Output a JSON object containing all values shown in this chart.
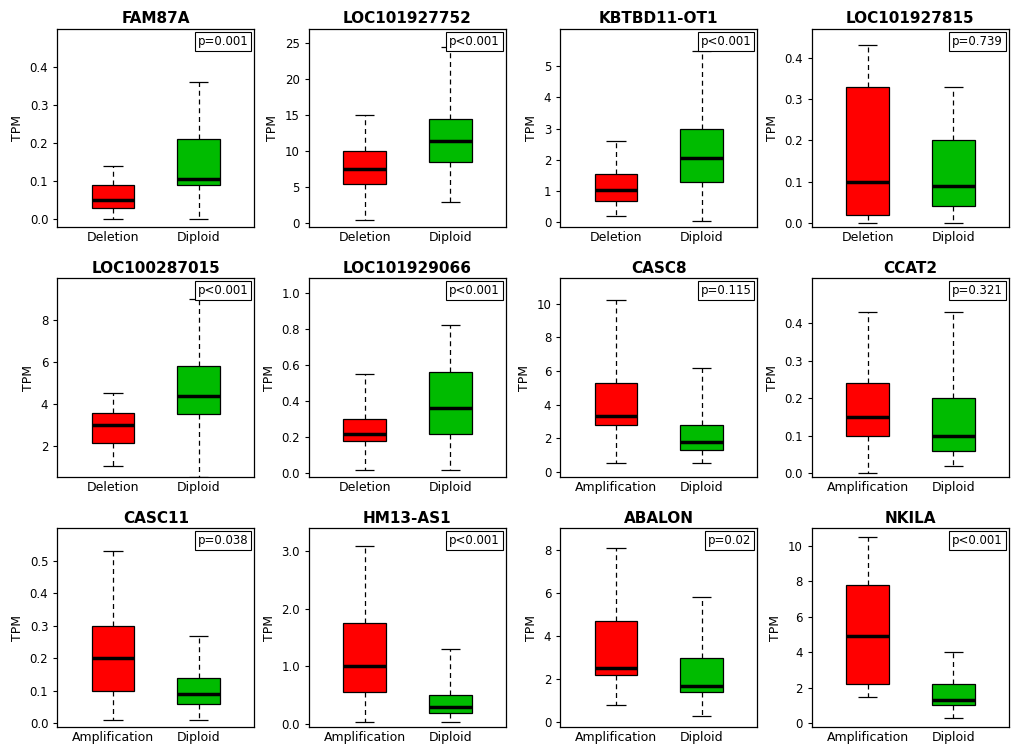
{
  "panels": [
    {
      "title": "FAM87A",
      "pvalue": "p=0.001",
      "xlabel1": "Deletion",
      "xlabel2": "Diploid",
      "color1": "#FF0000",
      "color2": "#00BB00",
      "ylim": [
        -0.02,
        0.5
      ],
      "yticks": [
        0.0,
        0.1,
        0.2,
        0.3,
        0.4
      ],
      "ytick_labels": [
        "0.0",
        "0.1",
        "0.2",
        "0.3",
        "0.4"
      ],
      "box1": {
        "whislo": 0.0,
        "q1": 0.03,
        "med": 0.05,
        "q3": 0.09,
        "whishi": 0.14
      },
      "box2": {
        "whislo": 0.0,
        "q1": 0.09,
        "med": 0.105,
        "q3": 0.21,
        "whishi": 0.36
      }
    },
    {
      "title": "LOC101927752",
      "pvalue": "p<0.001",
      "xlabel1": "Deletion",
      "xlabel2": "Diploid",
      "color1": "#FF0000",
      "color2": "#00BB00",
      "ylim": [
        -0.5,
        27
      ],
      "yticks": [
        0,
        5,
        10,
        15,
        20,
        25
      ],
      "ytick_labels": [
        "0",
        "5",
        "10",
        "15",
        "20",
        "25"
      ],
      "box1": {
        "whislo": 0.5,
        "q1": 5.5,
        "med": 7.5,
        "q3": 10.0,
        "whishi": 15.0
      },
      "box2": {
        "whislo": 3.0,
        "q1": 8.5,
        "med": 11.5,
        "q3": 14.5,
        "whishi": 24.5
      }
    },
    {
      "title": "KBTBD11-OT1",
      "pvalue": "p<0.001",
      "xlabel1": "Deletion",
      "xlabel2": "Diploid",
      "color1": "#FF0000",
      "color2": "#00BB00",
      "ylim": [
        -0.15,
        6.2
      ],
      "yticks": [
        0,
        1,
        2,
        3,
        4,
        5
      ],
      "ytick_labels": [
        "0",
        "1",
        "2",
        "3",
        "4",
        "5"
      ],
      "box1": {
        "whislo": 0.2,
        "q1": 0.7,
        "med": 1.05,
        "q3": 1.55,
        "whishi": 2.6
      },
      "box2": {
        "whislo": 0.05,
        "q1": 1.3,
        "med": 2.05,
        "q3": 3.0,
        "whishi": 5.5
      }
    },
    {
      "title": "LOC101927815",
      "pvalue": "p=0.739",
      "xlabel1": "Deletion",
      "xlabel2": "Diploid",
      "color1": "#FF0000",
      "color2": "#00BB00",
      "ylim": [
        -0.01,
        0.47
      ],
      "yticks": [
        0.0,
        0.1,
        0.2,
        0.3,
        0.4
      ],
      "ytick_labels": [
        "0.0",
        "0.1",
        "0.2",
        "0.3",
        "0.4"
      ],
      "box1": {
        "whislo": 0.0,
        "q1": 0.02,
        "med": 0.1,
        "q3": 0.33,
        "whishi": 0.43
      },
      "box2": {
        "whislo": 0.0,
        "q1": 0.04,
        "med": 0.09,
        "q3": 0.2,
        "whishi": 0.33
      }
    },
    {
      "title": "LOC100287015",
      "pvalue": "p<0.001",
      "xlabel1": "Deletion",
      "xlabel2": "Diploid",
      "color1": "#FF0000",
      "color2": "#00BB00",
      "ylim": [
        0.5,
        10.0
      ],
      "yticks": [
        2,
        4,
        6,
        8
      ],
      "ytick_labels": [
        "2",
        "4",
        "6",
        "8"
      ],
      "box1": {
        "whislo": 1.0,
        "q1": 2.1,
        "med": 3.0,
        "q3": 3.55,
        "whishi": 4.5
      },
      "box2": {
        "whislo": 0.5,
        "q1": 3.5,
        "med": 4.35,
        "q3": 5.8,
        "whishi": 9.0
      }
    },
    {
      "title": "LOC101929066",
      "pvalue": "p<0.001",
      "xlabel1": "Deletion",
      "xlabel2": "Diploid",
      "color1": "#FF0000",
      "color2": "#00BB00",
      "ylim": [
        -0.02,
        1.08
      ],
      "yticks": [
        0.0,
        0.2,
        0.4,
        0.6,
        0.8,
        1.0
      ],
      "ytick_labels": [
        "0.0",
        "0.2",
        "0.4",
        "0.6",
        "0.8",
        "1.0"
      ],
      "box1": {
        "whislo": 0.02,
        "q1": 0.18,
        "med": 0.22,
        "q3": 0.3,
        "whishi": 0.55
      },
      "box2": {
        "whislo": 0.02,
        "q1": 0.22,
        "med": 0.36,
        "q3": 0.56,
        "whishi": 0.82
      }
    },
    {
      "title": "CASC8",
      "pvalue": "p=0.115",
      "xlabel1": "Amplification",
      "xlabel2": "Diploid",
      "color1": "#FF0000",
      "color2": "#00BB00",
      "ylim": [
        -0.3,
        11.5
      ],
      "yticks": [
        0,
        2,
        4,
        6,
        8,
        10
      ],
      "ytick_labels": [
        "0",
        "2",
        "4",
        "6",
        "8",
        "10"
      ],
      "box1": {
        "whislo": 0.5,
        "q1": 2.8,
        "med": 3.3,
        "q3": 5.3,
        "whishi": 10.2
      },
      "box2": {
        "whislo": 0.5,
        "q1": 1.3,
        "med": 1.8,
        "q3": 2.8,
        "whishi": 6.2
      }
    },
    {
      "title": "CCAT2",
      "pvalue": "p=0.321",
      "xlabel1": "Amplification",
      "xlabel2": "Diploid",
      "color1": "#FF0000",
      "color2": "#00BB00",
      "ylim": [
        -0.01,
        0.52
      ],
      "yticks": [
        0.0,
        0.1,
        0.2,
        0.3,
        0.4
      ],
      "ytick_labels": [
        "0.0",
        "0.1",
        "0.2",
        "0.3",
        "0.4"
      ],
      "box1": {
        "whislo": 0.0,
        "q1": 0.1,
        "med": 0.15,
        "q3": 0.24,
        "whishi": 0.43
      },
      "box2": {
        "whislo": 0.02,
        "q1": 0.06,
        "med": 0.1,
        "q3": 0.2,
        "whishi": 0.43
      }
    },
    {
      "title": "CASC11",
      "pvalue": "p=0.038",
      "xlabel1": "Amplification",
      "xlabel2": "Diploid",
      "color1": "#FF0000",
      "color2": "#00BB00",
      "ylim": [
        -0.01,
        0.6
      ],
      "yticks": [
        0.0,
        0.1,
        0.2,
        0.3,
        0.4,
        0.5
      ],
      "ytick_labels": [
        "0.0",
        "0.1",
        "0.2",
        "0.3",
        "0.4",
        "0.5"
      ],
      "box1": {
        "whislo": 0.01,
        "q1": 0.1,
        "med": 0.2,
        "q3": 0.3,
        "whishi": 0.53
      },
      "box2": {
        "whislo": 0.01,
        "q1": 0.06,
        "med": 0.09,
        "q3": 0.14,
        "whishi": 0.27
      }
    },
    {
      "title": "HM13-AS1",
      "pvalue": "p<0.001",
      "xlabel1": "Amplification",
      "xlabel2": "Diploid",
      "color1": "#FF0000",
      "color2": "#00BB00",
      "ylim": [
        -0.05,
        3.4
      ],
      "yticks": [
        0.0,
        1.0,
        2.0,
        3.0
      ],
      "ytick_labels": [
        "0.0",
        "1.0",
        "2.0",
        "3.0"
      ],
      "box1": {
        "whislo": 0.03,
        "q1": 0.55,
        "med": 1.0,
        "q3": 1.75,
        "whishi": 3.1
      },
      "box2": {
        "whislo": 0.03,
        "q1": 0.18,
        "med": 0.3,
        "q3": 0.5,
        "whishi": 1.3
      }
    },
    {
      "title": "ABALON",
      "pvalue": "p=0.02",
      "xlabel1": "Amplification",
      "xlabel2": "Diploid",
      "color1": "#FF0000",
      "color2": "#00BB00",
      "ylim": [
        -0.2,
        9.0
      ],
      "yticks": [
        0,
        2,
        4,
        6,
        8
      ],
      "ytick_labels": [
        "0",
        "2",
        "4",
        "6",
        "8"
      ],
      "box1": {
        "whislo": 0.8,
        "q1": 2.2,
        "med": 2.5,
        "q3": 4.7,
        "whishi": 8.1
      },
      "box2": {
        "whislo": 0.3,
        "q1": 1.4,
        "med": 1.7,
        "q3": 3.0,
        "whishi": 5.8
      }
    },
    {
      "title": "NKILA",
      "pvalue": "p<0.001",
      "xlabel1": "Amplification",
      "xlabel2": "Diploid",
      "color1": "#FF0000",
      "color2": "#00BB00",
      "ylim": [
        -0.2,
        11.0
      ],
      "yticks": [
        0,
        2,
        4,
        6,
        8,
        10
      ],
      "ytick_labels": [
        "0",
        "2",
        "4",
        "6",
        "8",
        "10"
      ],
      "box1": {
        "whislo": 1.5,
        "q1": 2.2,
        "med": 4.9,
        "q3": 7.8,
        "whishi": 10.5
      },
      "box2": {
        "whislo": 0.3,
        "q1": 1.0,
        "med": 1.3,
        "q3": 2.2,
        "whishi": 4.0
      }
    }
  ],
  "bg_color": "#FFFFFF",
  "title_fontsize": 11,
  "label_fontsize": 9,
  "tick_fontsize": 8.5,
  "pvalue_fontsize": 8.5
}
